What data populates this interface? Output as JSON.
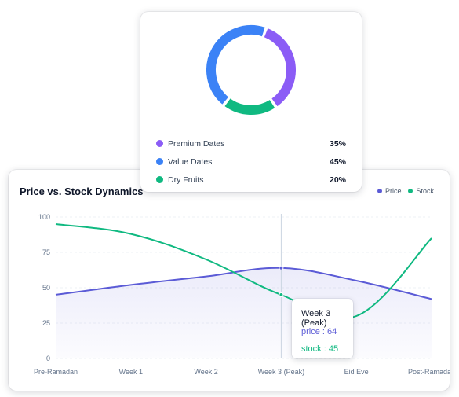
{
  "colors": {
    "price": "#5b5bd6",
    "stock": "#10b981",
    "premium": "#8b5cf6",
    "value": "#3b82f6",
    "dry": "#10b981"
  },
  "pie": {
    "legend": [
      {
        "label": "Premium Dates",
        "value": "35%",
        "color": "#8b5cf6",
        "icon": "circle"
      },
      {
        "label": "Value Dates",
        "value": "45%",
        "color": "#3b82f6",
        "icon": "circle"
      },
      {
        "label": "Dry Fruits",
        "value": "20%",
        "color": "#10b981",
        "icon": "circle"
      }
    ]
  },
  "line_chart": {
    "title": "Price vs. Stock Dynamics",
    "legend": {
      "price": "Price",
      "stock": "Stock"
    },
    "tooltip": {
      "title": "Week 3 (Peak)",
      "price": "price : 64",
      "stock": "stock : 45"
    }
  },
  "chart_data": [
    {
      "type": "pie",
      "categories": [
        "Premium Dates",
        "Value Dates",
        "Dry Fruits"
      ],
      "values": [
        35,
        45,
        20
      ],
      "title": ""
    },
    {
      "type": "line",
      "title": "Price vs. Stock Dynamics",
      "categories": [
        "Pre-Ramadan",
        "Week 1",
        "Week 2",
        "Week 3 (Peak)",
        "Eid Eve",
        "Post-Ramadan"
      ],
      "series": [
        {
          "name": "Price",
          "values": [
            45,
            52,
            58,
            64,
            55,
            42
          ]
        },
        {
          "name": "Stock",
          "values": [
            95,
            88,
            70,
            45,
            30,
            85
          ]
        }
      ],
      "ylim": [
        0,
        100
      ],
      "yticks": [
        0,
        25,
        50,
        75,
        100
      ],
      "grid": true,
      "legend_position": "top-right",
      "xlabel": "",
      "ylabel": ""
    }
  ]
}
